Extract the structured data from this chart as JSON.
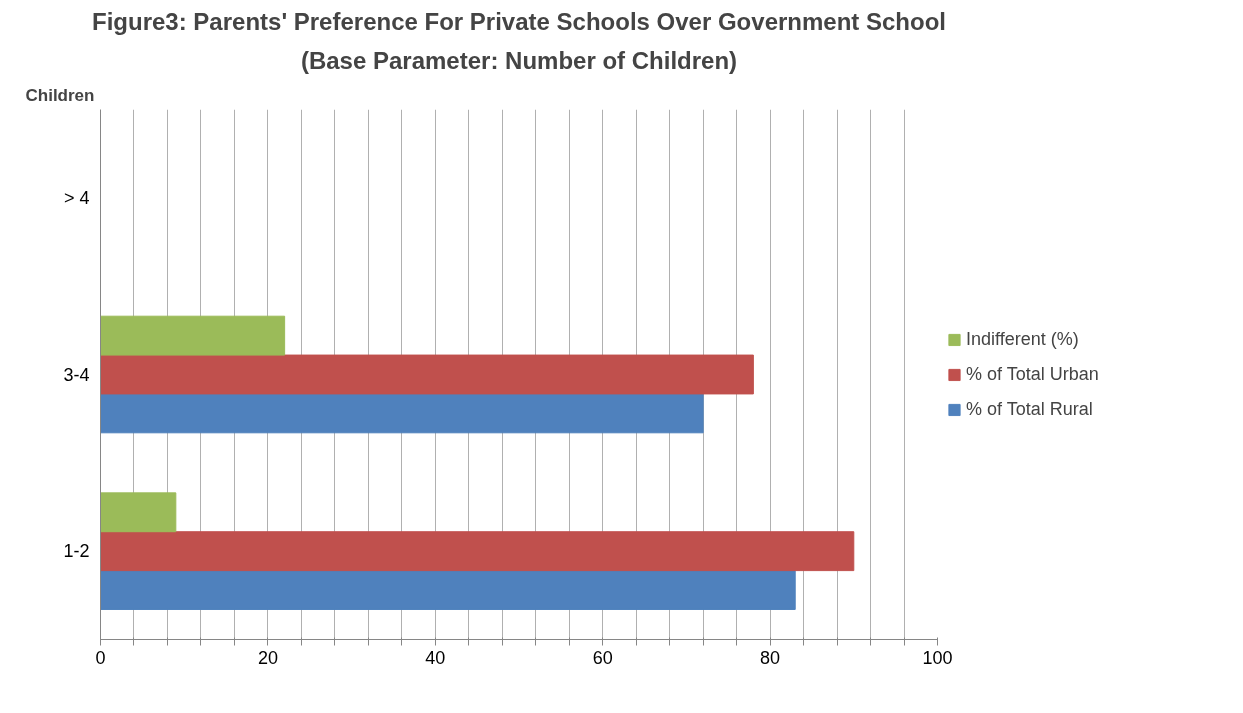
{
  "chart_data": {
    "type": "bar",
    "orientation": "horizontal",
    "title": "Figure3: Parents' Preference For Private Schools Over Government School",
    "subtitle": "(Base Parameter: Number of Children)",
    "ylabel": "Children",
    "categories": [
      "> 4",
      "3-4",
      "1-2"
    ],
    "series": [
      {
        "name": "% of Total Rural",
        "color": "#4f81bd",
        "values": [
          null,
          72,
          83
        ]
      },
      {
        "name": "% of Total Urban",
        "color": "#c0504d",
        "values": [
          null,
          78,
          90
        ]
      },
      {
        "name": "Indifferent (%)",
        "color": "#9bbb59",
        "values": [
          null,
          22,
          9
        ]
      }
    ],
    "xlim": [
      0,
      100
    ],
    "xticks": [
      0,
      {
        "value": 4,
        "label": null
      },
      {
        "value": 8,
        "label": null
      },
      {
        "value": 12,
        "label": null
      },
      {
        "value": 16,
        "label": null
      },
      20,
      {
        "value": 24,
        "label": null
      },
      {
        "value": 28,
        "label": null
      },
      {
        "value": 32,
        "label": null
      },
      {
        "value": 36,
        "label": null
      },
      40,
      {
        "value": 44,
        "label": null
      },
      {
        "value": 48,
        "label": null
      },
      {
        "value": 52,
        "label": null
      },
      {
        "value": 56,
        "label": null
      },
      60,
      {
        "value": 64,
        "label": null
      },
      {
        "value": 68,
        "label": null
      },
      {
        "value": 72,
        "label": null
      },
      {
        "value": 76,
        "label": null
      },
      80,
      {
        "value": 84,
        "label": null
      },
      {
        "value": 88,
        "label": null
      },
      {
        "value": 92,
        "label": null
      },
      {
        "value": 96,
        "label": null
      },
      100
    ],
    "grid": "x",
    "legend": "right"
  }
}
